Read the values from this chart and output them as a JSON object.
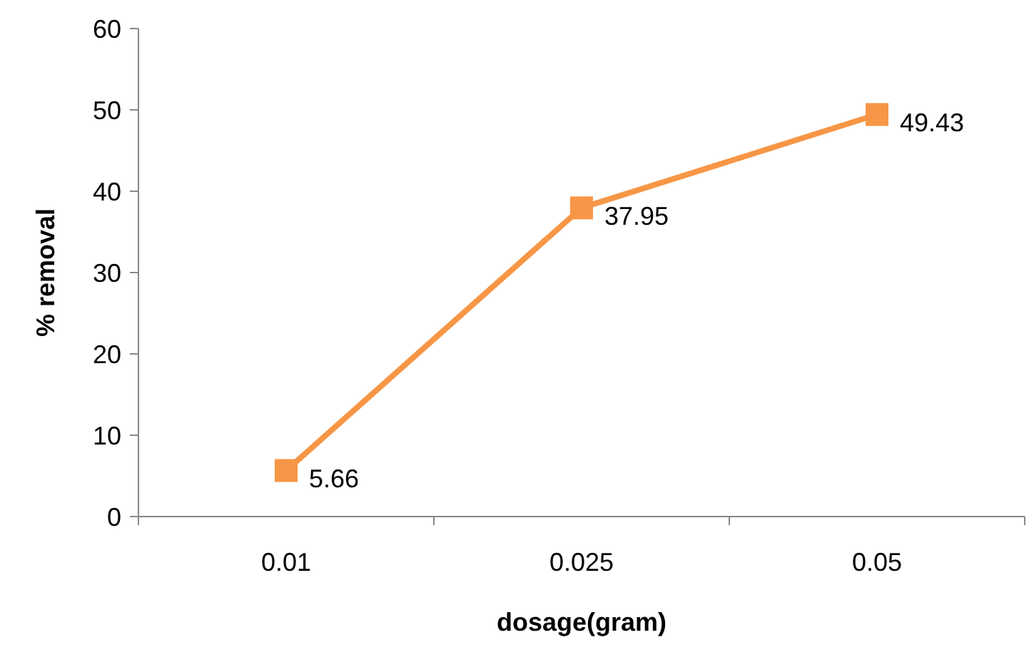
{
  "chart_data": {
    "type": "line",
    "xlabel": "dosage(gram)",
    "ylabel": "% removal",
    "categories": [
      "0.01",
      "0.025",
      "0.05"
    ],
    "series": [
      {
        "color": "#f79646",
        "values": [
          5.66,
          37.95,
          49.43
        ]
      }
    ],
    "ylim": [
      0,
      60
    ],
    "yticks": [
      0,
      10,
      20,
      30,
      40,
      50,
      60
    ],
    "marker": "square",
    "line_style": "solid",
    "data_labels": true
  }
}
